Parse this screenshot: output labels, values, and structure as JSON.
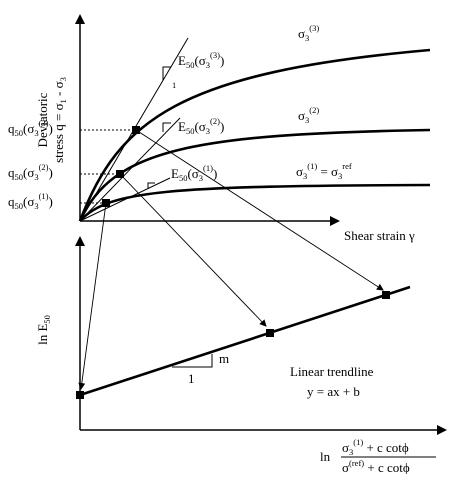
{
  "top_plot": {
    "y_label_line1": "Deviatoric",
    "y_label_line2_main": "stress q = σ",
    "y_label_line2_sub1": "1",
    "y_label_line2_dash": " - σ",
    "y_label_line2_sub3": "3",
    "x_label": "Shear strain γ",
    "curve_labels": {
      "s3_3_base": "σ",
      "s3_3_sub": "3",
      "s3_3_sup": "(3)",
      "s3_2_base": "σ",
      "s3_2_sub": "3",
      "s3_2_sup": "(2)",
      "s3_1_base": "σ",
      "s3_1_sub": "3",
      "s3_1_sup": "(1)",
      "s3_1_eq": " = σ",
      "ref_sub": "3",
      "ref_sup": "ref"
    },
    "e50_labels": {
      "e3": {
        "E": "E",
        "sub": "50",
        "open": "(σ",
        "s": "3",
        "sup": "(3)",
        "close": ")"
      },
      "e2": {
        "E": "E",
        "sub": "50",
        "open": "(σ",
        "s": "3",
        "sup": "(2)",
        "close": ")"
      },
      "e1": {
        "E": "E",
        "sub": "50",
        "open": "(σ",
        "s": "3",
        "sup": "(1)",
        "close": ")"
      }
    },
    "q50_labels": {
      "q3": {
        "q": "q",
        "sub": "50",
        "open": "(σ",
        "s": "3",
        "sup": "(3)",
        "close": ")"
      },
      "q2": {
        "q": "q",
        "sub": "50",
        "open": "(σ",
        "s": "3",
        "sup": "(2)",
        "close": ")"
      },
      "q1": {
        "q": "q",
        "sub": "50",
        "open": "(σ",
        "s": "3",
        "sup": "(1)",
        "close": ")"
      }
    },
    "slope_one_label": "1"
  },
  "bottom_plot": {
    "y_label_main": "ln E",
    "y_label_sub": "50",
    "slope_m": "m",
    "slope_one": "1",
    "trend_title": "Linear trendline",
    "trend_eq": "y = ax + b",
    "x_label": {
      "ln": "ln",
      "num_s": "σ",
      "num_sub": "3",
      "num_sup": "(1)",
      "num_rest": " + c cotϕ",
      "den_s": "σ",
      "den_sup": "(ref)",
      "den_rest": " + c cotϕ"
    }
  }
}
